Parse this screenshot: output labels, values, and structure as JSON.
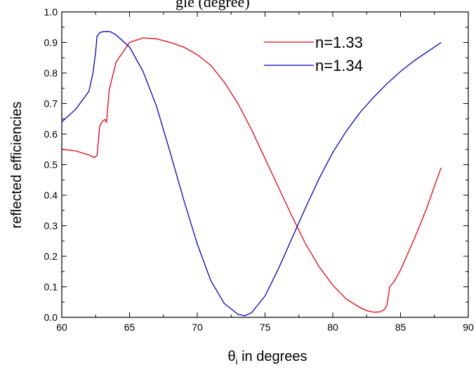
{
  "caption_fragment": "gle         (degree)",
  "chart_data": {
    "type": "line",
    "title": "",
    "xlabel_symbol": "θ",
    "xlabel_subscript": "i",
    "xlabel_rest": " in degrees",
    "ylabel": "reflected efficiencies",
    "xlim": [
      60,
      90
    ],
    "ylim": [
      0.0,
      1.0
    ],
    "x_ticks": [
      "60",
      "65",
      "70",
      "75",
      "80",
      "85",
      "90"
    ],
    "y_ticks": [
      "0.0",
      "0.1",
      "0.2",
      "0.3",
      "0.4",
      "0.5",
      "0.6",
      "0.7",
      "0.8",
      "0.9",
      "1.0"
    ],
    "grid": false,
    "legend_position": "top-right",
    "series": [
      {
        "name": "n=1.33",
        "color": "#e8000b",
        "x": [
          60,
          61,
          62,
          62.4,
          62.6,
          62.8,
          63.0,
          63.2,
          63.3,
          63.5,
          64,
          65,
          66,
          67,
          68,
          69,
          70,
          71,
          72,
          73,
          74,
          75,
          76,
          77,
          78,
          79,
          80,
          81,
          82,
          82.5,
          83,
          83.5,
          83.8,
          84,
          84.2,
          84.5,
          85,
          85.5,
          86,
          86.5,
          87,
          87.5,
          88
        ],
        "y": [
          0.55,
          0.545,
          0.532,
          0.523,
          0.53,
          0.625,
          0.642,
          0.648,
          0.638,
          0.745,
          0.835,
          0.9,
          0.915,
          0.912,
          0.9,
          0.885,
          0.86,
          0.825,
          0.77,
          0.7,
          0.615,
          0.52,
          0.425,
          0.33,
          0.24,
          0.165,
          0.105,
          0.06,
          0.032,
          0.022,
          0.017,
          0.018,
          0.025,
          0.04,
          0.1,
          0.115,
          0.155,
          0.205,
          0.255,
          0.31,
          0.365,
          0.43,
          0.49
        ]
      },
      {
        "name": "n=1.34",
        "color": "#0000cc",
        "x": [
          60,
          61,
          62,
          62.3,
          62.5,
          62.6,
          62.8,
          63.0,
          63.3,
          63.6,
          64,
          65,
          66,
          67,
          68,
          69,
          70,
          71,
          72,
          73,
          73.5,
          74,
          75,
          76,
          77,
          78,
          79,
          80,
          81,
          82,
          83,
          84,
          85,
          86,
          87,
          88
        ],
        "y": [
          0.64,
          0.68,
          0.74,
          0.8,
          0.87,
          0.92,
          0.932,
          0.935,
          0.936,
          0.935,
          0.925,
          0.885,
          0.805,
          0.69,
          0.54,
          0.385,
          0.24,
          0.12,
          0.045,
          0.01,
          0.005,
          0.015,
          0.07,
          0.16,
          0.26,
          0.36,
          0.455,
          0.54,
          0.61,
          0.67,
          0.72,
          0.765,
          0.805,
          0.84,
          0.87,
          0.9
        ]
      }
    ]
  }
}
